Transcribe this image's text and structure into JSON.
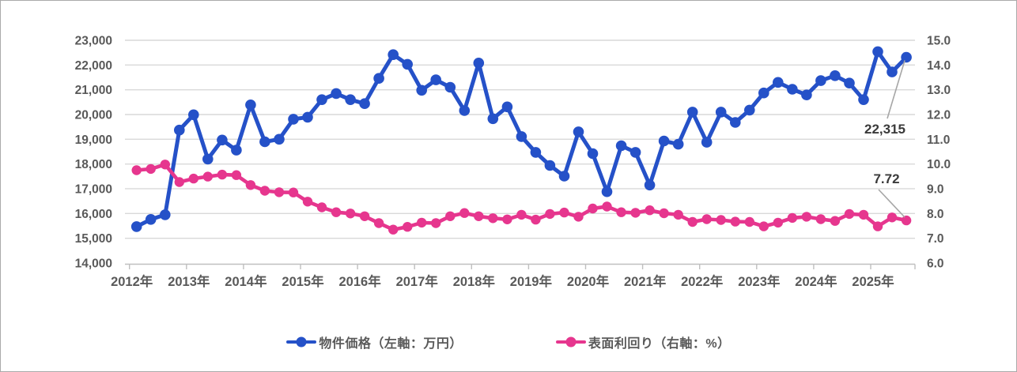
{
  "page": {
    "background": "#ffffff",
    "border_color": "#aaaaaa",
    "grid_color": "#d9d9d9",
    "axis_line_color": "#bfbfbf",
    "axis_text_color": "#595959",
    "annotation_text_color": "#3a3a3a",
    "leader_line_color": "#a6a6a6"
  },
  "chart_data": {
    "type": "line",
    "title": "",
    "grid": true,
    "legend_position": "bottom",
    "x_tick_labels": [
      "2012年",
      "2013年",
      "2014年",
      "2015年",
      "2016年",
      "2017年",
      "2018年",
      "2019年",
      "2020年",
      "2021年",
      "2022年",
      "2023年",
      "2024年",
      "2025年"
    ],
    "points_per_year": 4,
    "left_axis": {
      "min": 14000,
      "max": 23000,
      "step": 1000,
      "tick_labels": [
        "23,000",
        "22,000",
        "21,000",
        "20,000",
        "19,000",
        "18,000",
        "17,000",
        "16,000",
        "15,000",
        "14,000"
      ]
    },
    "right_axis": {
      "min": 6.0,
      "max": 15.0,
      "step": 1.0,
      "tick_labels": [
        "15.0",
        "14.0",
        "13.0",
        "12.0",
        "11.0",
        "10.0",
        "9.0",
        "8.0",
        "7.0",
        "6.0"
      ]
    },
    "series": [
      {
        "name": "物件価格（左軸：万円）",
        "axis": "left",
        "color": "#2551c8",
        "values": [
          15470,
          15760,
          15950,
          19370,
          19990,
          18200,
          18970,
          18560,
          20390,
          18900,
          19000,
          19810,
          19890,
          20600,
          20850,
          20600,
          20440,
          21460,
          22420,
          22030,
          20980,
          21400,
          21100,
          20160,
          22080,
          19830,
          20310,
          19110,
          18470,
          17940,
          17510,
          19300,
          18420,
          16880,
          18740,
          18470,
          17150,
          18930,
          18800,
          20100,
          18880,
          20100,
          19680,
          20180,
          20870,
          21300,
          21020,
          20790,
          21370,
          21570,
          21270,
          20600,
          22540,
          21720,
          22315
        ]
      },
      {
        "name": "表面利回り（右軸：%）",
        "axis": "right",
        "color": "#e6368e",
        "values": [
          9.75,
          9.8,
          9.98,
          9.27,
          9.41,
          9.49,
          9.57,
          9.55,
          9.15,
          8.92,
          8.86,
          8.85,
          8.48,
          8.25,
          8.05,
          8.0,
          7.89,
          7.61,
          7.35,
          7.46,
          7.63,
          7.61,
          7.89,
          8.02,
          7.89,
          7.81,
          7.76,
          7.95,
          7.75,
          7.98,
          8.04,
          7.87,
          8.2,
          8.28,
          8.05,
          8.03,
          8.13,
          8.01,
          7.95,
          7.66,
          7.77,
          7.74,
          7.67,
          7.66,
          7.48,
          7.63,
          7.82,
          7.87,
          7.77,
          7.7,
          7.98,
          7.95,
          7.48,
          7.84,
          7.72
        ]
      }
    ],
    "annotations": [
      {
        "text": "22,315",
        "series": 0
      },
      {
        "text": "7.72",
        "series": 1
      }
    ]
  },
  "legend": {
    "items": [
      {
        "label": "物件価格（左軸：万円）"
      },
      {
        "label": "表面利回り（右軸：%）"
      }
    ]
  }
}
